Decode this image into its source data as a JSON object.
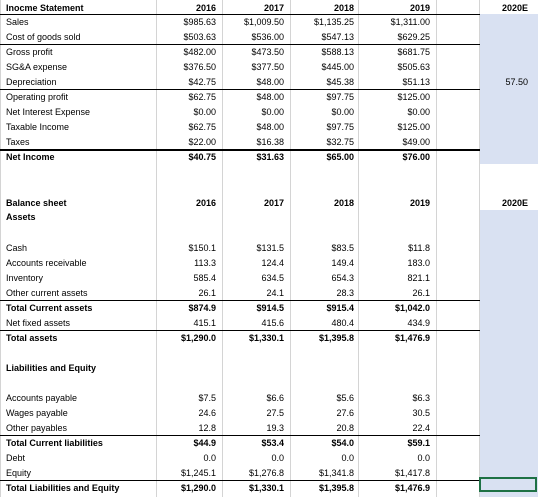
{
  "income": {
    "title": "Inocme Statement",
    "years": [
      "2016",
      "2017",
      "2018",
      "2019",
      "2020E"
    ],
    "rows": [
      {
        "label": "Sales",
        "v": [
          "$985.63",
          "$1,009.50",
          "$1,135.25",
          "$1,311.00",
          ""
        ]
      },
      {
        "label": "Cost of goods sold",
        "v": [
          "$503.63",
          "$536.00",
          "$547.13",
          "$629.25",
          ""
        ]
      },
      {
        "label": "Gross profit",
        "v": [
          "$482.00",
          "$473.50",
          "$588.13",
          "$681.75",
          ""
        ]
      },
      {
        "label": "SG&A expense",
        "v": [
          "$376.50",
          "$377.50",
          "$445.00",
          "$505.63",
          ""
        ]
      },
      {
        "label": "Depreciation",
        "v": [
          "$42.75",
          "$48.00",
          "$45.38",
          "$51.13",
          "57.50"
        ]
      },
      {
        "label": "Operating profit",
        "v": [
          "$62.75",
          "$48.00",
          "$97.75",
          "$125.00",
          ""
        ]
      },
      {
        "label": "Net Interest Expense",
        "v": [
          "$0.00",
          "$0.00",
          "$0.00",
          "$0.00",
          ""
        ]
      },
      {
        "label": "Taxable Income",
        "v": [
          "$62.75",
          "$48.00",
          "$97.75",
          "$125.00",
          ""
        ]
      },
      {
        "label": "Taxes",
        "v": [
          "$22.00",
          "$16.38",
          "$32.75",
          "$49.00",
          ""
        ]
      },
      {
        "label": "Net Income",
        "v": [
          "$40.75",
          "$31.63",
          "$65.00",
          "$76.00",
          ""
        ]
      }
    ]
  },
  "balance": {
    "title": "Balance sheet",
    "years": [
      "2016",
      "2017",
      "2018",
      "2019",
      "2020E"
    ],
    "assets_heading": "Assets",
    "asset_rows": [
      {
        "label": "Cash",
        "v": [
          "$150.1",
          "$131.5",
          "$83.5",
          "$11.8",
          ""
        ]
      },
      {
        "label": "Accounts receivable",
        "v": [
          "113.3",
          "124.4",
          "149.4",
          "183.0",
          ""
        ]
      },
      {
        "label": "Inventory",
        "v": [
          "585.4",
          "634.5",
          "654.3",
          "821.1",
          ""
        ]
      },
      {
        "label": "Other current assets",
        "v": [
          "26.1",
          "24.1",
          "28.3",
          "26.1",
          ""
        ]
      },
      {
        "label": "Total Current assets",
        "v": [
          "$874.9",
          "$914.5",
          "$915.4",
          "$1,042.0",
          ""
        ]
      },
      {
        "label": "Net fixed assets",
        "v": [
          "415.1",
          "415.6",
          "480.4",
          "434.9",
          ""
        ]
      },
      {
        "label": "Total assets",
        "v": [
          "$1,290.0",
          "$1,330.1",
          "$1,395.8",
          "$1,476.9",
          ""
        ]
      }
    ],
    "liab_heading": "Liabilities and Equity",
    "liab_rows": [
      {
        "label": "Accounts payable",
        "v": [
          "$7.5",
          "$6.6",
          "$5.6",
          "$6.3",
          ""
        ]
      },
      {
        "label": "Wages payable",
        "v": [
          "24.6",
          "27.5",
          "27.6",
          "30.5",
          ""
        ]
      },
      {
        "label": "Other payables",
        "v": [
          "12.8",
          "19.3",
          "20.8",
          "22.4",
          ""
        ]
      },
      {
        "label": "Total Current liabilities",
        "v": [
          "$44.9",
          "$53.4",
          "$54.0",
          "$59.1",
          ""
        ]
      },
      {
        "label": "Debt",
        "v": [
          "0.0",
          "0.0",
          "0.0",
          "0.0",
          ""
        ]
      },
      {
        "label": "Equity",
        "v": [
          "$1,245.1",
          "$1,276.8",
          "$1,341.8",
          "$1,417.8",
          ""
        ]
      },
      {
        "label": "Total Liabilities and Equity",
        "v": [
          "$1,290.0",
          "$1,330.1",
          "$1,395.8",
          "$1,476.9",
          ""
        ]
      }
    ]
  }
}
